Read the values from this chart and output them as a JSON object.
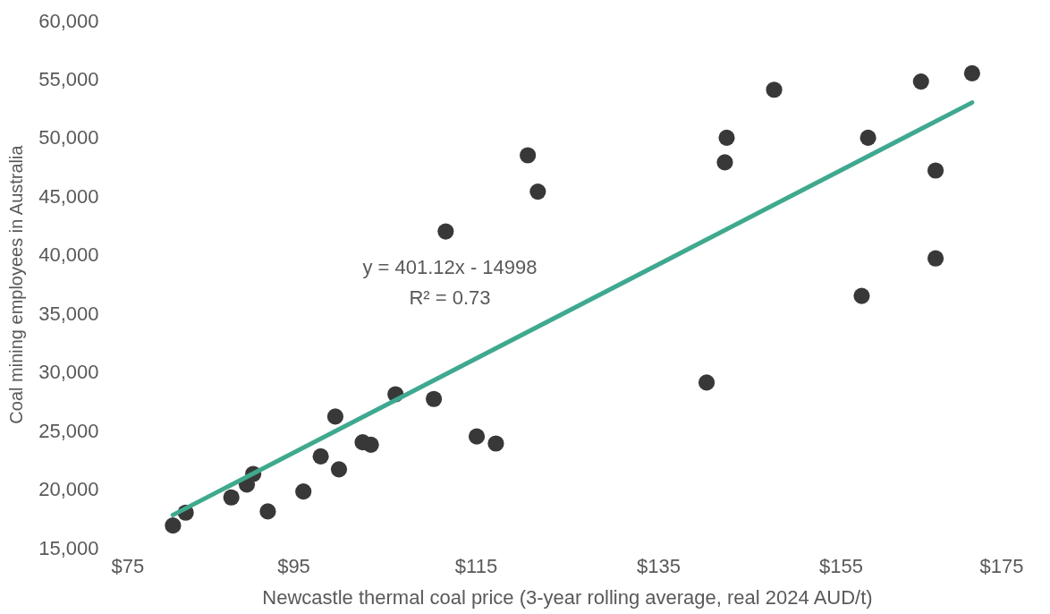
{
  "chart_data": {
    "type": "scatter",
    "xlabel": "Newcastle thermal coal price (3-year rolling average, real 2024 AUD/t)",
    "ylabel": "Coal mining employees in Australia",
    "annotations": [
      "y = 401.12x - 14998",
      "R² = 0.73"
    ],
    "series": [
      {
        "color": "#383838",
        "marker": "circle",
        "x": [
          81.8,
          83.2,
          88.2,
          89.9,
          90.6,
          92.2,
          96.1,
          98.0,
          99.6,
          100.0,
          102.6,
          103.5,
          106.2,
          110.4,
          115.1,
          117.2,
          111.7,
          120.7,
          121.8,
          147.7,
          142.5,
          142.3,
          140.3,
          158.0,
          157.3,
          163.8,
          169.4,
          165.4,
          165.4
        ],
        "values": [
          16900,
          18000,
          19300,
          20400,
          21300,
          18100,
          19800,
          22800,
          26200,
          21700,
          24000,
          23800,
          28100,
          27700,
          24500,
          23900,
          42000,
          48500,
          45400,
          54100,
          50000,
          47900,
          29100,
          50000,
          36500,
          54800,
          55500,
          47200,
          39700
        ]
      },
      {
        "type": "line",
        "color": "#3fa98f",
        "line_style": "solid",
        "x": [
          81.8,
          169.4
        ],
        "values": [
          17800,
          53000
        ]
      }
    ],
    "xlim": [
      75,
      175
    ],
    "ylim": [
      15000,
      60000
    ],
    "xticks": [
      {
        "value": 75,
        "label": "$75"
      },
      {
        "value": 95,
        "label": "$95"
      },
      {
        "value": 115,
        "label": "$115"
      },
      {
        "value": 135,
        "label": "$135"
      },
      {
        "value": 155,
        "label": "$155"
      },
      {
        "value": 175,
        "label": "$175"
      }
    ],
    "yticks": [
      {
        "value": 15000,
        "label": "15,000"
      },
      {
        "value": 20000,
        "label": "20,000"
      },
      {
        "value": 25000,
        "label": "25,000"
      },
      {
        "value": 30000,
        "label": "30,000"
      },
      {
        "value": 35000,
        "label": "35,000"
      },
      {
        "value": 40000,
        "label": "40,000"
      },
      {
        "value": 45000,
        "label": "45,000"
      },
      {
        "value": 50000,
        "label": "50,000"
      },
      {
        "value": 55000,
        "label": "55,000"
      },
      {
        "value": 60000,
        "label": "60,000"
      }
    ],
    "grid": false
  }
}
